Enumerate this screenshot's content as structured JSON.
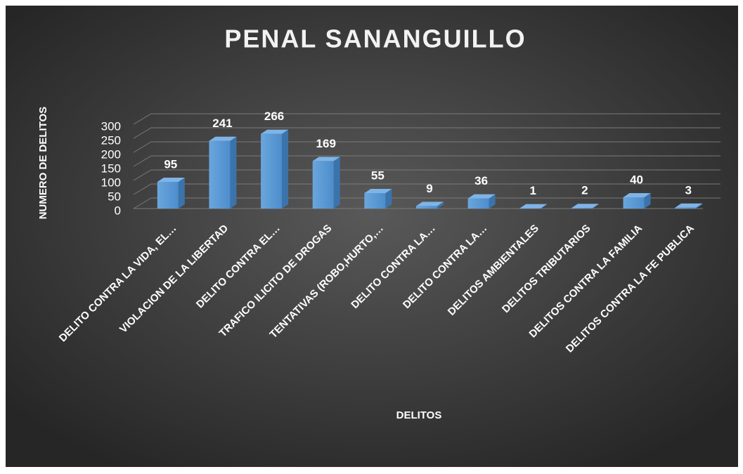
{
  "chart_data": {
    "type": "bar3d",
    "title": "PENAL SANANGUILLO",
    "x_label": "DELITOS",
    "y_label": "NUMERO DE DELITOS",
    "categories": [
      "DELITO CONTRA LA VIDA, EL…",
      "VIOLACION DE LA LIBERTAD",
      "DELITO CONTRA EL…",
      "TRAFICO ILICITO DE DROGAS",
      "TENTATIVAS (ROBO,HURTO,…",
      "DELITO CONTRA LA…",
      "DELITO CONTRA LA…",
      "DELITOS AMBIENTALES",
      "DELITOS TRIBUTARIOS",
      "DELITOS CONTRA LA FAMILIA",
      "DELITOS CONTRA LA FE PUBLICA"
    ],
    "values": [
      95,
      241,
      266,
      169,
      55,
      9,
      36,
      1,
      2,
      40,
      3
    ],
    "color": "#5b9bd5",
    "ylim": [
      0,
      300
    ],
    "yticks": [
      0,
      50,
      100,
      150,
      200,
      250,
      300
    ],
    "grid": true
  }
}
